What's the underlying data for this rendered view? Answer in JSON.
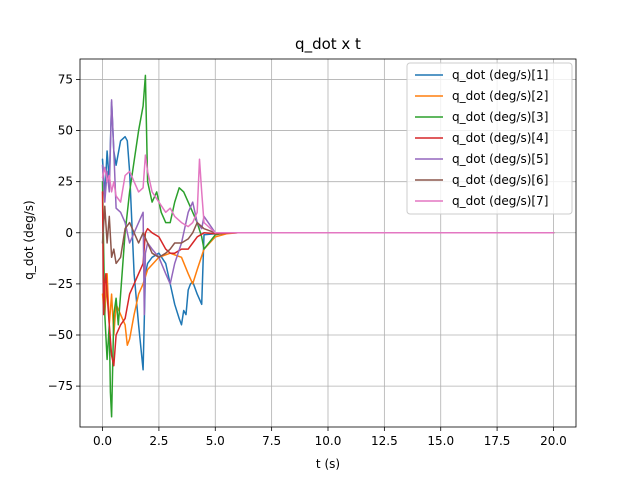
{
  "chart_data": {
    "type": "line",
    "title": "q_dot x t",
    "xlabel": "t (s)",
    "ylabel": "q_dot (deg/s)",
    "xlim": [
      -1.0,
      21.0
    ],
    "ylim": [
      -95,
      85
    ],
    "xticks": [
      0.0,
      2.5,
      5.0,
      7.5,
      10.0,
      12.5,
      15.0,
      17.5,
      20.0
    ],
    "xtick_labels": [
      "0.0",
      "2.5",
      "5.0",
      "7.5",
      "10.0",
      "12.5",
      "15.0",
      "17.5",
      "20.0"
    ],
    "yticks": [
      -75,
      -50,
      -25,
      0,
      25,
      50,
      75
    ],
    "ytick_labels": [
      "−75",
      "−50",
      "−25",
      "0",
      "25",
      "50",
      "75"
    ],
    "grid": true,
    "legend_position": "top-right",
    "series": [
      {
        "name": "q_dot (deg/s)[1]",
        "color": "#1f77b4",
        "x": [
          0.0,
          0.1,
          0.2,
          0.3,
          0.4,
          0.5,
          0.6,
          0.8,
          1.0,
          1.1,
          1.2,
          1.4,
          1.6,
          1.8,
          1.9,
          2.0,
          2.2,
          2.5,
          2.8,
          3.0,
          3.2,
          3.4,
          3.5,
          3.6,
          3.7,
          3.8,
          3.9,
          4.0,
          4.2,
          4.4,
          4.5,
          5.0,
          5.5,
          6.0,
          6.5,
          7.0,
          8.0,
          10.0,
          12.5,
          15.0,
          17.5,
          20.0
        ],
        "values": [
          36,
          18,
          40,
          25,
          64,
          40,
          33,
          45,
          47,
          45,
          30,
          -20,
          -45,
          -67,
          -20,
          -15,
          -12,
          -10,
          -15,
          -25,
          -35,
          -42,
          -45,
          -38,
          -40,
          -28,
          -25,
          -24,
          -30,
          -35,
          -1,
          -0.5,
          -0.2,
          0,
          0,
          0,
          0,
          0,
          0,
          0,
          0,
          0
        ]
      },
      {
        "name": "q_dot (deg/s)[2]",
        "color": "#ff7f0e",
        "x": [
          0.0,
          0.1,
          0.2,
          0.3,
          0.4,
          0.5,
          0.6,
          0.8,
          1.0,
          1.1,
          1.2,
          1.4,
          1.6,
          1.8,
          2.0,
          2.5,
          3.0,
          3.5,
          3.8,
          4.0,
          4.2,
          4.5,
          5.0,
          5.5,
          6.0,
          7.0,
          8.0,
          10.0,
          12.5,
          15.0,
          17.5,
          20.0
        ],
        "values": [
          -30,
          -40,
          -20,
          -45,
          -30,
          -50,
          -35,
          -40,
          -45,
          -55,
          -52,
          -40,
          -30,
          -25,
          -18,
          -12,
          -10,
          -12,
          -20,
          -25,
          -18,
          -8,
          -2,
          -0.5,
          0,
          0,
          0,
          0,
          0,
          0,
          0,
          0
        ]
      },
      {
        "name": "q_dot (deg/s)[3]",
        "color": "#2ca02c",
        "x": [
          0.0,
          0.1,
          0.2,
          0.3,
          0.35,
          0.4,
          0.5,
          0.6,
          0.7,
          0.8,
          1.0,
          1.2,
          1.4,
          1.6,
          1.8,
          1.9,
          2.0,
          2.2,
          2.4,
          2.6,
          2.8,
          3.0,
          3.2,
          3.4,
          3.6,
          3.8,
          4.0,
          4.2,
          4.4,
          4.5,
          5.0,
          5.5,
          6.0,
          7.0,
          8.0,
          10.0,
          12.5,
          15.0,
          17.5,
          20.0
        ],
        "values": [
          25,
          -40,
          -62,
          -45,
          -78,
          -90,
          -40,
          -32,
          -45,
          -30,
          0,
          20,
          35,
          50,
          62,
          77,
          25,
          15,
          20,
          10,
          5,
          5,
          15,
          22,
          20,
          15,
          10,
          5,
          -2,
          -8,
          -1,
          0,
          0,
          0,
          0,
          0,
          0,
          0,
          0,
          0
        ]
      },
      {
        "name": "q_dot (deg/s)[4]",
        "color": "#d62728",
        "x": [
          0.0,
          0.05,
          0.1,
          0.15,
          0.2,
          0.3,
          0.4,
          0.5,
          0.6,
          0.8,
          1.0,
          1.2,
          1.4,
          1.6,
          1.8,
          1.9,
          2.0,
          2.2,
          2.5,
          2.8,
          3.0,
          3.2,
          3.5,
          3.8,
          4.0,
          4.2,
          4.5,
          5.0,
          5.5,
          6.0,
          7.0,
          8.0,
          10.0,
          12.5,
          15.0,
          17.5,
          20.0
        ],
        "values": [
          20,
          -40,
          -25,
          -20,
          -30,
          -45,
          -60,
          -65,
          -50,
          -45,
          -42,
          -30,
          -25,
          -20,
          -15,
          0,
          2,
          0,
          -2,
          -8,
          -10,
          -10,
          -8,
          -8,
          -5,
          -2,
          0,
          -0.5,
          -0.2,
          0,
          0,
          0,
          0,
          0,
          0,
          0,
          0
        ]
      },
      {
        "name": "q_dot (deg/s)[5]",
        "color": "#9467bd",
        "x": [
          0.0,
          0.1,
          0.2,
          0.3,
          0.4,
          0.5,
          0.6,
          0.8,
          1.0,
          1.2,
          1.4,
          1.6,
          1.8,
          1.85,
          1.9,
          2.0,
          2.2,
          2.5,
          2.8,
          3.0,
          3.2,
          3.5,
          3.8,
          4.0,
          4.2,
          4.4,
          4.5,
          5.0,
          5.5,
          6.0,
          7.0,
          8.0,
          10.0,
          12.5,
          15.0,
          17.5,
          20.0
        ],
        "values": [
          33,
          15,
          30,
          20,
          65,
          40,
          12,
          10,
          5,
          -5,
          0,
          5,
          10,
          -40,
          -10,
          -5,
          -8,
          -12,
          -20,
          -25,
          -15,
          -5,
          10,
          15,
          5,
          2,
          8,
          0,
          0,
          0,
          0,
          0,
          0,
          0,
          0,
          0,
          0
        ]
      },
      {
        "name": "q_dot (deg/s)[6]",
        "color": "#8c564b",
        "x": [
          0.0,
          0.1,
          0.2,
          0.3,
          0.4,
          0.5,
          0.6,
          0.8,
          1.0,
          1.2,
          1.4,
          1.6,
          1.8,
          2.0,
          2.2,
          2.5,
          2.8,
          3.0,
          3.2,
          3.5,
          3.8,
          4.0,
          4.2,
          4.5,
          5.0,
          5.5,
          6.0,
          7.0,
          8.0,
          10.0,
          12.5,
          15.0,
          17.5,
          20.0
        ],
        "values": [
          -5,
          13,
          -5,
          8,
          -12,
          -8,
          -15,
          -12,
          2,
          5,
          0,
          -5,
          0,
          -5,
          -10,
          -12,
          -10,
          -8,
          -5,
          -5,
          -3,
          0,
          5,
          2,
          0,
          0,
          0,
          0,
          0,
          0,
          0,
          0,
          0,
          0
        ]
      },
      {
        "name": "q_dot (deg/s)[7]",
        "color": "#e377c2",
        "x": [
          0.0,
          0.1,
          0.2,
          0.3,
          0.4,
          0.5,
          0.6,
          0.8,
          1.0,
          1.2,
          1.4,
          1.6,
          1.8,
          1.9,
          2.0,
          2.2,
          2.5,
          2.8,
          3.0,
          3.2,
          3.5,
          3.8,
          4.0,
          4.2,
          4.3,
          4.4,
          4.5,
          5.0,
          5.5,
          6.0,
          7.0,
          8.0,
          10.0,
          12.5,
          15.0,
          17.5,
          20.0
        ],
        "values": [
          27,
          32,
          25,
          28,
          20,
          25,
          18,
          15,
          28,
          30,
          25,
          20,
          22,
          38,
          30,
          20,
          15,
          10,
          12,
          8,
          5,
          3,
          5,
          10,
          36,
          20,
          5,
          0,
          0,
          0,
          0,
          0,
          0,
          0,
          0,
          0,
          0
        ]
      }
    ]
  }
}
